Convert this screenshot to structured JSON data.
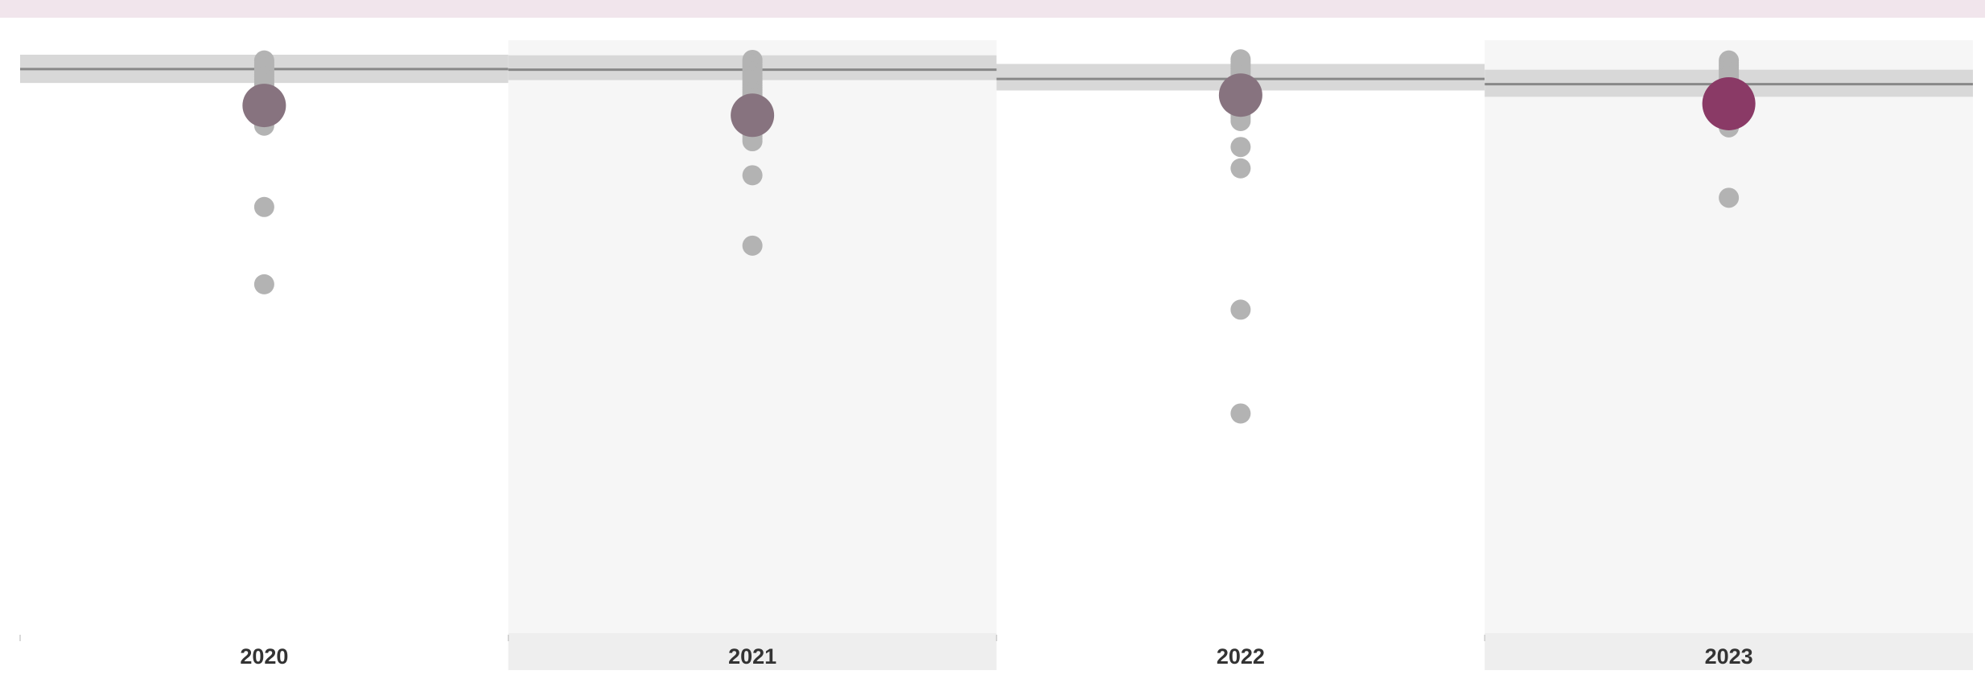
{
  "chart_data": {
    "type": "scatter",
    "title": "",
    "xlabel": "",
    "ylabel": "",
    "categories": [
      "2020",
      "2021",
      "2022",
      "2023"
    ],
    "ylim": [
      0,
      100
    ],
    "grid": false,
    "legend": "none",
    "colors": {
      "top_bar": "#f1e5ec",
      "panel_shade": "#f6f6f6",
      "axis_band": "#eeeeee",
      "reference_band": "#d8d8d8",
      "reference_line": "#888888",
      "point": "#b3b3b3",
      "highlight_past": "#87737f",
      "highlight_current": "#8a3a66",
      "label": "#333333"
    },
    "panels": [
      {
        "year": "2020",
        "reference": {
          "line": 97.5,
          "band": [
            95.1,
            100
          ]
        },
        "highlight": 91.2,
        "points": [
          99.0,
          98.6,
          98.2,
          97.8,
          97.4,
          97.0,
          96.6,
          96.2,
          95.8,
          95.4,
          95.0,
          94.6,
          94.2,
          93.8,
          93.4,
          93.0,
          92.6,
          92.2,
          91.8,
          91.4,
          91.0,
          90.6,
          90.2,
          89.8,
          89.4,
          89.0,
          88.6,
          88.2,
          87.7,
          73.6,
          60.2
        ]
      },
      {
        "year": "2021",
        "reference": {
          "line": 97.4,
          "band": [
            95.6,
            99.9
          ]
        },
        "highlight": 89.5,
        "points": [
          99.1,
          98.7,
          98.3,
          97.9,
          97.5,
          97.1,
          96.7,
          96.3,
          95.9,
          95.5,
          95.1,
          94.7,
          94.3,
          93.9,
          93.5,
          93.1,
          92.7,
          92.3,
          91.9,
          91.5,
          91.1,
          90.7,
          90.3,
          89.9,
          89.4,
          89.0,
          88.6,
          88.1,
          87.6,
          87.1,
          86.4,
          85.9,
          85.4,
          85.0,
          79.1,
          66.9
        ]
      },
      {
        "year": "2022",
        "reference": {
          "line": 95.8,
          "band": [
            93.8,
            98.4
          ]
        },
        "highlight": 93.0,
        "points": [
          99.2,
          98.8,
          98.4,
          98.0,
          97.6,
          97.2,
          96.8,
          96.4,
          96.0,
          95.6,
          95.2,
          94.8,
          94.4,
          94.0,
          93.6,
          93.2,
          92.8,
          92.4,
          92.0,
          91.6,
          91.2,
          90.8,
          90.4,
          90.0,
          89.5,
          89.0,
          88.5,
          84.0,
          80.3,
          55.8,
          37.8
        ]
      },
      {
        "year": "2023",
        "reference": {
          "line": 94.9,
          "band": [
            92.7,
            97.4
          ]
        },
        "highlight": 91.5,
        "points": [
          99.0,
          98.6,
          98.2,
          97.8,
          97.4,
          97.0,
          96.6,
          96.2,
          95.8,
          95.4,
          95.0,
          94.6,
          94.2,
          93.8,
          93.4,
          93.0,
          92.6,
          92.2,
          91.8,
          91.4,
          91.0,
          90.6,
          90.2,
          89.8,
          89.4,
          89.0,
          88.6,
          88.0,
          87.4,
          75.2
        ]
      }
    ]
  }
}
